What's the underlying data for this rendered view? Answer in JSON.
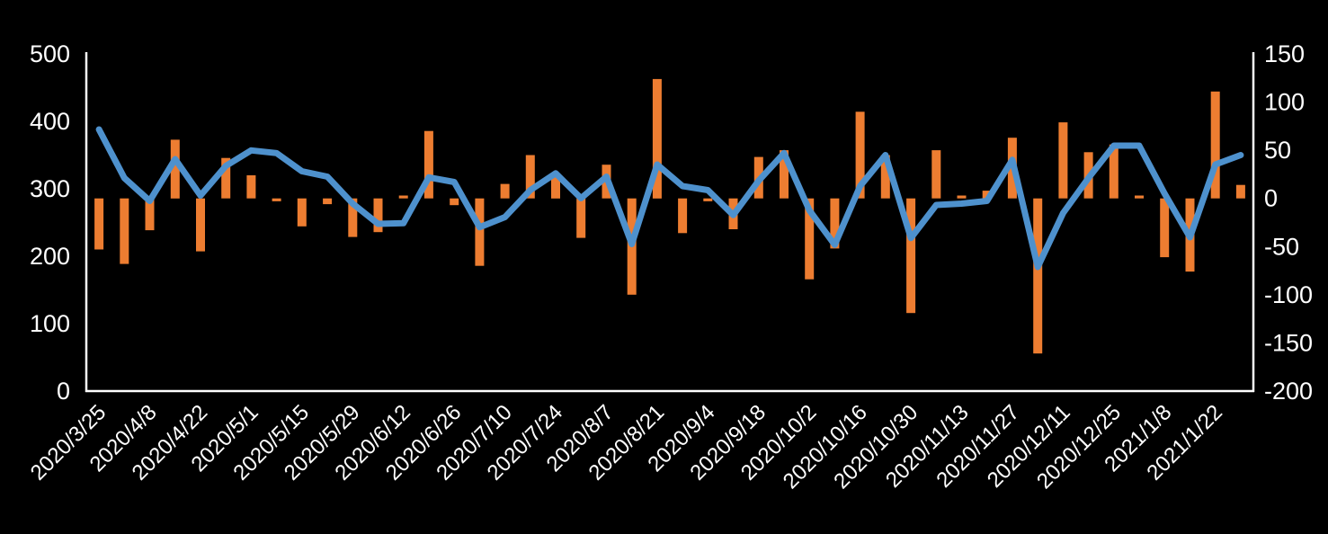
{
  "chart_data": {
    "type": "combo",
    "title": "",
    "legend": "none",
    "grid": false,
    "background_color": "#000000",
    "axis_line_color": "#ffffff",
    "text_color": "#ffffff",
    "left_axis": {
      "min": 0,
      "max": 500,
      "ticks": [
        500,
        400,
        300,
        200,
        100,
        0
      ]
    },
    "right_axis": {
      "min": -200,
      "max": 150,
      "ticks": [
        150,
        100,
        50,
        0,
        -50,
        -100,
        -150,
        -200
      ]
    },
    "x_tick_labels": [
      "2020/3/25",
      "2020/4/8",
      "2020/4/22",
      "2020/5/1",
      "2020/5/15",
      "2020/5/29",
      "2020/6/12",
      "2020/6/26",
      "2020/7/10",
      "2020/7/24",
      "2020/8/7",
      "2020/8/21",
      "2020/9/4",
      "2020/9/18",
      "2020/10/2",
      "2020/10/16",
      "2020/10/30",
      "2020/11/13",
      "2020/11/27",
      "2020/12/11",
      "2020/12/25",
      "2021/1/8",
      "2021/1/22"
    ],
    "x_tick_every": 2,
    "series": [
      {
        "name": "bars",
        "type": "bar",
        "axis": "right",
        "color": "#ED7D31",
        "values": [
          -53,
          -68,
          -33,
          61,
          -55,
          42,
          24,
          -3,
          -29,
          -6,
          -40,
          -35,
          3,
          70,
          -7,
          -70,
          15,
          45,
          26,
          -41,
          35,
          -100,
          124,
          -36,
          -3,
          -32,
          43,
          50,
          -84,
          -52,
          90,
          45,
          -119,
          50,
          3,
          8,
          63,
          -161,
          79,
          48,
          56,
          3,
          -61,
          -76,
          111,
          14
        ]
      },
      {
        "name": "line",
        "type": "line",
        "axis": "left",
        "color": "#4E91CD",
        "values": [
          388,
          316,
          282,
          344,
          290,
          334,
          357,
          353,
          326,
          318,
          278,
          248,
          249,
          317,
          310,
          243,
          258,
          298,
          323,
          286,
          318,
          218,
          336,
          304,
          298,
          261,
          312,
          353,
          268,
          217,
          304,
          350,
          227,
          276,
          278,
          282,
          343,
          184,
          264,
          316,
          364,
          364,
          293,
          228,
          336,
          350
        ]
      }
    ]
  }
}
